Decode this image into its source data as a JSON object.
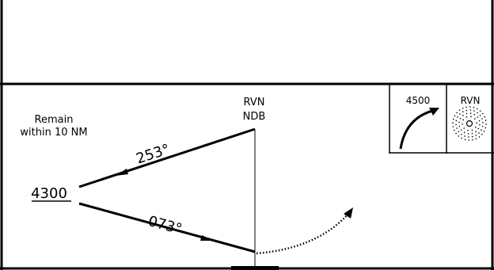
{
  "procedure": {
    "remain_text_line1": "Remain",
    "remain_text_line2": "within 10 NM",
    "altitude": "4300",
    "inbound_course": "253°",
    "outbound_course": "073°",
    "fix_line1": "RVN",
    "fix_line2": "NDB"
  },
  "profile_box": {
    "altitude": "4500",
    "fix": "RVN"
  },
  "colors": {
    "ink": "#000000",
    "background": "#ffffff"
  }
}
